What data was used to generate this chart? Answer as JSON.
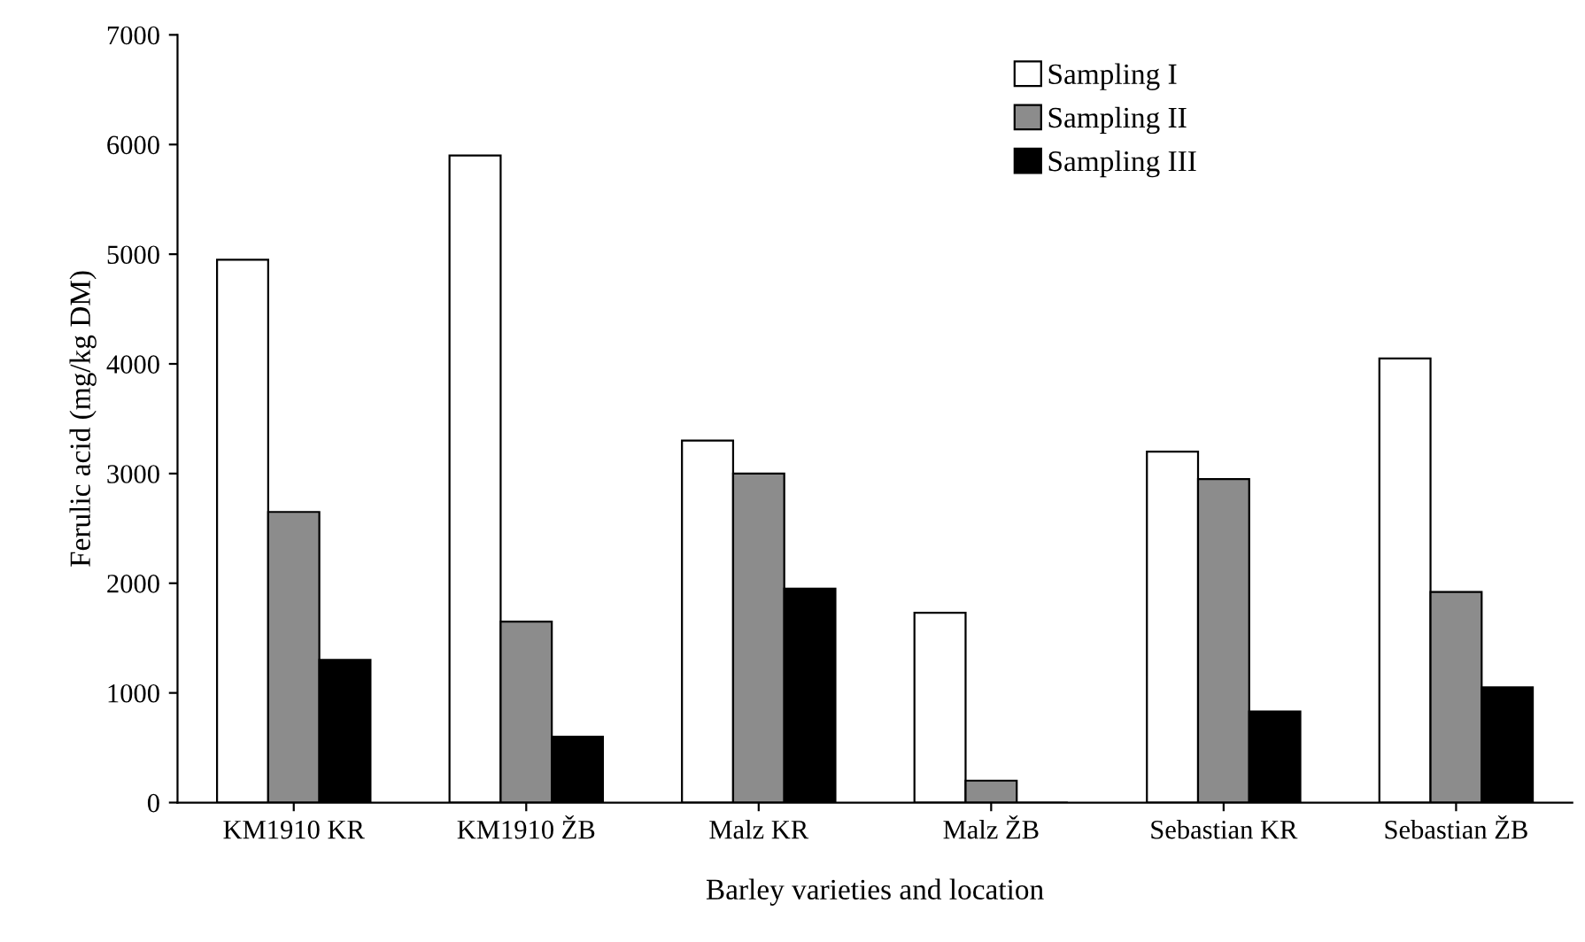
{
  "chart_data": {
    "type": "bar",
    "xlabel": "Barley varieties and location",
    "ylabel": "Ferulic acid (mg/kg DM)",
    "categories": [
      "KM1910 KR",
      "KM1910 ŽB",
      "Malz KR",
      "Malz ŽB",
      "Sebastian KR",
      "Sebastian ŽB"
    ],
    "series": [
      {
        "name": "Sampling I",
        "color": "#ffffff",
        "values": [
          4950,
          5900,
          3300,
          1730,
          3200,
          4050
        ]
      },
      {
        "name": "Sampling II",
        "color": "#8c8c8c",
        "values": [
          2650,
          1650,
          3000,
          200,
          2950,
          1920
        ]
      },
      {
        "name": "Sampling III",
        "color": "#000000",
        "values": [
          1300,
          600,
          1950,
          0,
          830,
          1050
        ]
      }
    ],
    "ylim": [
      0,
      7000
    ],
    "yticks": [
      0,
      1000,
      2000,
      3000,
      4000,
      5000,
      6000,
      7000
    ],
    "grid": false,
    "legend": "top right"
  }
}
